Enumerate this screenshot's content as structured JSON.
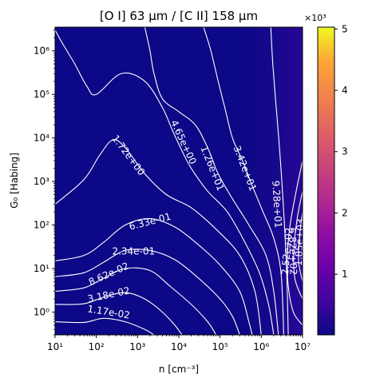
{
  "chart_data": {
    "type": "heatmap",
    "title": "[O I] 63 μm / [C II] 158 μm",
    "xlabel": "n [cm⁻³]",
    "ylabel": "G₀ [Habing]",
    "x_scale": "log",
    "y_scale": "log",
    "xlim": [
      10,
      10000000
    ],
    "ylim": [
      0.3,
      3500000
    ],
    "x_ticks": [
      {
        "label": "10¹",
        "value": 10
      },
      {
        "label": "10²",
        "value": 100
      },
      {
        "label": "10³",
        "value": 1000
      },
      {
        "label": "10⁴",
        "value": 10000
      },
      {
        "label": "10⁵",
        "value": 100000
      },
      {
        "label": "10⁶",
        "value": 1000000
      },
      {
        "label": "10⁷",
        "value": 10000000
      }
    ],
    "y_ticks": [
      {
        "label": "10⁰",
        "value": 1
      },
      {
        "label": "10¹",
        "value": 10
      },
      {
        "label": "10²",
        "value": 100
      },
      {
        "label": "10³",
        "value": 1000
      },
      {
        "label": "10⁴",
        "value": 10000
      },
      {
        "label": "10⁵",
        "value": 100000
      },
      {
        "label": "10⁶",
        "value": 1000000
      }
    ],
    "colorbar": {
      "colormap": "plasma",
      "range": [
        0.012,
        5.03
      ],
      "multiplier": "×10³",
      "tick_labels": [
        "1",
        "2",
        "3",
        "4",
        "5"
      ],
      "tick_values": [
        1,
        2,
        3,
        4,
        5
      ]
    },
    "peak": {
      "n": 10000000,
      "G0": 40,
      "value_e3": 5.0
    },
    "contours": [
      {
        "label": "1.17e-02",
        "label_at": [
          200.0,
          1.0
        ],
        "points": [
          [
            10,
            0.6
          ],
          [
            50,
            0.58
          ],
          [
            150,
            0.72
          ],
          [
            500,
            0.6
          ],
          [
            1500,
            0.4
          ],
          [
            2500,
            0.3
          ]
        ]
      },
      {
        "label": "3.18e-02",
        "label_at": [
          200.0,
          2.5
        ],
        "points": [
          [
            10,
            1.5
          ],
          [
            50,
            1.55
          ],
          [
            150,
            2.2
          ],
          [
            500,
            2.8
          ],
          [
            1500,
            2.0
          ],
          [
            4000,
            1.0
          ],
          [
            8000,
            0.5
          ],
          [
            12000,
            0.3
          ]
        ]
      },
      {
        "label": "8.62e-02",
        "label_at": [
          200.0,
          7.5
        ],
        "points": [
          [
            10,
            3.0
          ],
          [
            50,
            3.6
          ],
          [
            150,
            6.0
          ],
          [
            500,
            10.0
          ],
          [
            2000,
            9.0
          ],
          [
            6000,
            4.0
          ],
          [
            20000,
            1.5
          ],
          [
            50000,
            0.6
          ],
          [
            80000,
            0.3
          ]
        ]
      },
      {
        "label": "2.34e-01",
        "label_at": [
          800.0,
          25
        ],
        "points": [
          [
            10,
            6.5
          ],
          [
            50,
            8.0
          ],
          [
            150,
            14.0
          ],
          [
            500,
            26.0
          ],
          [
            2000,
            26.0
          ],
          [
            8000,
            16.0
          ],
          [
            30000,
            6.0
          ],
          [
            100000,
            2.0
          ],
          [
            200000,
            0.8
          ],
          [
            300000,
            0.3
          ]
        ]
      },
      {
        "label": "6.33e-01",
        "label_at": [
          2000.0,
          120
        ],
        "points": [
          [
            10,
            15.0
          ],
          [
            50,
            20.0
          ],
          [
            150,
            40.0
          ],
          [
            500,
            100.0
          ],
          [
            2000,
            140.0
          ],
          [
            8000,
            90.0
          ],
          [
            30000,
            35.0
          ],
          [
            100000,
            12.0
          ],
          [
            300000,
            3.0
          ],
          [
            500000,
            0.6
          ],
          [
            600000,
            0.3
          ]
        ]
      },
      {
        "label": "1.72e+00",
        "label_at": [
          600.0,
          4000
        ],
        "points": [
          [
            10,
            300.0
          ],
          [
            50,
            1100.0
          ],
          [
            120,
            4000.0
          ],
          [
            250,
            9000.0
          ],
          [
            500,
            6000.0
          ],
          [
            1500,
            1500.0
          ],
          [
            5000,
            500.0
          ],
          [
            20000,
            250.0
          ],
          [
            80000,
            80.0
          ],
          [
            300000,
            20.0
          ],
          [
            700000,
            3.0
          ],
          [
            1000000,
            0.3
          ]
        ]
      },
      {
        "label": "4.65e+00",
        "label_at": [
          13000.0,
          8000
        ],
        "points": [
          [
            10,
            3000000.0
          ],
          [
            15,
            1500000.0
          ],
          [
            30,
            500000.0
          ],
          [
            60,
            150000.0
          ],
          [
            100,
            100000.0
          ],
          [
            400,
            300000.0
          ],
          [
            1500,
            200000.0
          ],
          [
            4000,
            50000.0
          ],
          [
            7000,
            15000.0
          ],
          [
            12000,
            5000.0
          ],
          [
            20000,
            2000.0
          ],
          [
            50000,
            600.0
          ],
          [
            150000,
            200.0
          ],
          [
            400000,
            40.0
          ],
          [
            900000,
            8.0
          ],
          [
            1500000,
            1.5
          ],
          [
            2000000,
            0.3
          ]
        ]
      },
      {
        "label": "1.26e+01",
        "label_at": [
          65000.0,
          2000
        ],
        "points": [
          [
            1500,
            3500000.0
          ],
          [
            2000,
            1000000.0
          ],
          [
            2500,
            300000.0
          ],
          [
            4000,
            80000.0
          ],
          [
            10000,
            40000.0
          ],
          [
            25000,
            20000.0
          ],
          [
            50000,
            6000.0
          ],
          [
            90000,
            1500.0
          ],
          [
            200000,
            400.0
          ],
          [
            500000,
            100.0
          ],
          [
            1300000,
            20.0
          ],
          [
            2000000,
            3.0
          ],
          [
            2600000,
            0.3
          ]
        ]
      },
      {
        "label": "3.42e+01",
        "label_at": [
          400000.0,
          2000
        ],
        "points": [
          [
            40000,
            3500000.0
          ],
          [
            60000,
            1000000.0
          ],
          [
            90000,
            200000.0
          ],
          [
            130000,
            50000.0
          ],
          [
            200000,
            10000.0
          ],
          [
            350000,
            3000.0
          ],
          [
            600000,
            800.0
          ],
          [
            1100000,
            200.0
          ],
          [
            2000000,
            50.0
          ],
          [
            3000000,
            8.0
          ],
          [
            3500000,
            0.3
          ]
        ]
      },
      {
        "label": "9.28e+01",
        "label_at": [
          2400000.0,
          300
        ],
        "points": [
          [
            1700000,
            3500000.0
          ],
          [
            1900000,
            500000.0
          ],
          [
            2300000,
            50000.0
          ],
          [
            2800000,
            5000.0
          ],
          [
            3300000,
            500.0
          ],
          [
            3800000,
            50.0
          ],
          [
            4200000,
            5.0
          ],
          [
            4500000,
            0.3
          ]
        ]
      },
      {
        "label": "2.52e+02",
        "label_at": [
          4200000.0,
          25
        ],
        "points": [
          [
            10000000,
            3000.0
          ],
          [
            7000000,
            600.0
          ],
          [
            5000000,
            100.0
          ],
          [
            4300000,
            20.0
          ],
          [
            4500000,
            4.0
          ],
          [
            6000000,
            1.0
          ],
          [
            10000000,
            0.5
          ]
        ]
      },
      {
        "label": "6.82e+02",
        "label_at": [
          5800000.0,
          25
        ],
        "points": [
          [
            10000000,
            600.0
          ],
          [
            7500000,
            150.0
          ],
          [
            6200000,
            30.0
          ],
          [
            6500000,
            6.0
          ],
          [
            10000000,
            2.0
          ]
        ]
      },
      {
        "label": "1.85e+03",
        "label_at": [
          8400000.0,
          40
        ],
        "points": [
          [
            10000000,
            200.0
          ],
          [
            8500000,
            60.0
          ],
          [
            8000000,
            15.0
          ],
          [
            10000000,
            5.0
          ]
        ]
      }
    ]
  }
}
